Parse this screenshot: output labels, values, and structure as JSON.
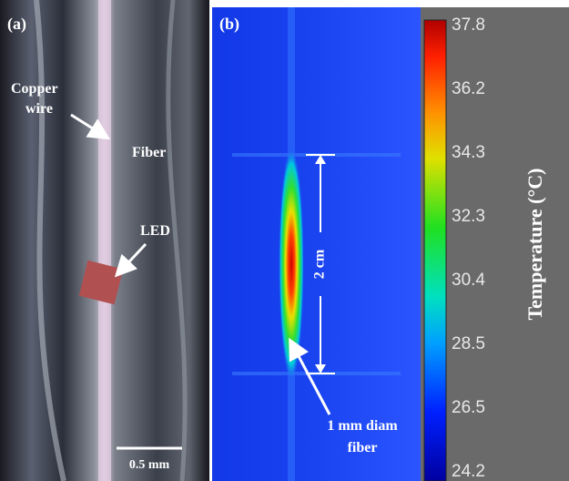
{
  "panel_a": {
    "label": "(a)",
    "copper_wire": [
      "Copper",
      "wire"
    ],
    "fiber": "Fiber",
    "led": "LED",
    "scale_bar": "0.5 mm"
  },
  "panel_b": {
    "label": "(b)",
    "length": "2 cm",
    "fiber_note": [
      "1 mm diam",
      "fiber"
    ]
  },
  "colorbar": {
    "label": "Temperature (°C)",
    "ticks": [
      37.8,
      36.2,
      34.3,
      32.3,
      30.4,
      28.5,
      26.5,
      24.2
    ]
  }
}
